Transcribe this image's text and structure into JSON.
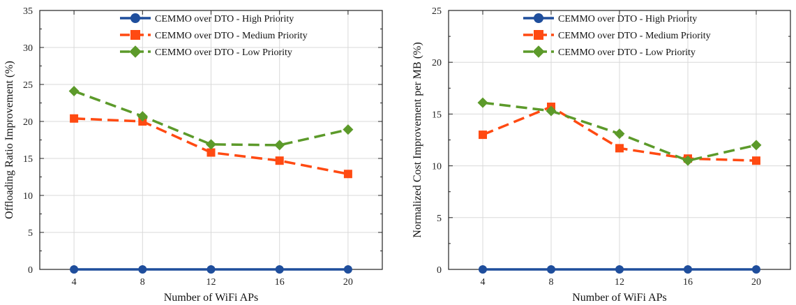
{
  "chart_data": [
    {
      "type": "line",
      "x": [
        4,
        8,
        12,
        16,
        20
      ],
      "xticks": [
        "4",
        "8",
        "12",
        "16",
        "20"
      ],
      "xlabel": "Number of WiFi APs",
      "ylabel": "Offloading Ratio Improvement (%)",
      "ylim": [
        0,
        35
      ],
      "yticks": [
        "0",
        "5",
        "10",
        "15",
        "20",
        "25",
        "30",
        "35"
      ],
      "grid": true,
      "legend": "top-right",
      "series": [
        {
          "name": "CEMMO over DTO - High Priority",
          "values": [
            0,
            0,
            0,
            0,
            0
          ],
          "color": "#1f4e9c",
          "marker": "circle",
          "dash": "solid"
        },
        {
          "name": "CEMMO over DTO - Medium Priority",
          "values": [
            20.4,
            20.0,
            15.8,
            14.7,
            12.9
          ],
          "color": "#ff4a12",
          "marker": "square",
          "dash": "dashed"
        },
        {
          "name": "CEMMO over DTO - Low Priority",
          "values": [
            24.1,
            20.7,
            16.9,
            16.8,
            18.9
          ],
          "color": "#5c9a2a",
          "marker": "diamond",
          "dash": "dashed"
        }
      ]
    },
    {
      "type": "line",
      "x": [
        4,
        8,
        12,
        16,
        20
      ],
      "xticks": [
        "4",
        "8",
        "12",
        "16",
        "20"
      ],
      "xlabel": "Number of WiFi APs",
      "ylabel": "Normalized Cost Improvement per MB (%)",
      "ylim": [
        0,
        25
      ],
      "yticks": [
        "0",
        "5",
        "10",
        "15",
        "20",
        "25"
      ],
      "grid": true,
      "legend": "top-right",
      "series": [
        {
          "name": "CEMMO over DTO - High Priority",
          "values": [
            0,
            0,
            0,
            0,
            0
          ],
          "color": "#1f4e9c",
          "marker": "circle",
          "dash": "solid"
        },
        {
          "name": "CEMMO over DTO - Medium Priority",
          "values": [
            13.0,
            15.7,
            11.7,
            10.7,
            10.5
          ],
          "color": "#ff4a12",
          "marker": "square",
          "dash": "dashed"
        },
        {
          "name": "CEMMO over DTO - Low Priority",
          "values": [
            16.1,
            15.3,
            13.1,
            10.5,
            12.0
          ],
          "color": "#5c9a2a",
          "marker": "diamond",
          "dash": "dashed"
        }
      ]
    }
  ]
}
